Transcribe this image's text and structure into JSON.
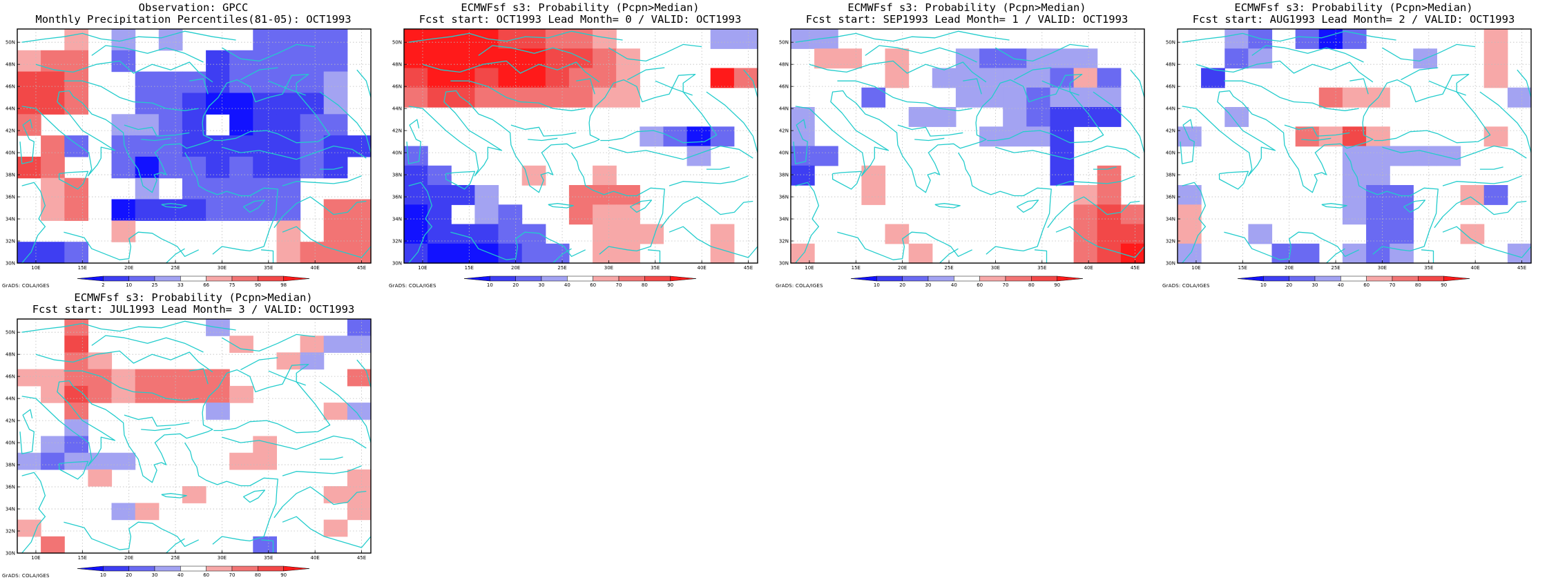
{
  "colors": {
    "coast": "#22cccc",
    "grid": "#bdbdbd",
    "scale": {
      "b5": "#1212ff",
      "b4": "#3e3ef2",
      "b3": "#6a6af2",
      "b2": "#a3a3f2",
      "w": "#ffffff",
      "r2": "#f7a8a8",
      "r3": "#f27474",
      "r4": "#f24848",
      "r5": "#ff1a1a"
    }
  },
  "axes": {
    "lat_labels": [
      "30N",
      "32N",
      "34N",
      "36N",
      "38N",
      "40N",
      "42N",
      "44N",
      "46N",
      "48N",
      "50N"
    ],
    "lon_labels": [
      "10E",
      "15E",
      "20E",
      "25E",
      "30E",
      "35E",
      "40E",
      "45E"
    ]
  },
  "panels": [
    {
      "id": "obs",
      "title_line1": "Observation: GPCC",
      "title_line2": "Monthly Precipitation Percentiles(81-05): OCT1993",
      "colorbar_labels": [
        "2",
        "10",
        "25",
        "33",
        "66",
        "75",
        "90",
        "98"
      ],
      "credit": "GrADS: COLA/IGES",
      "grid": [
        "w w r2 w b2 w b2 w w w b3 b3 b3 b3 w",
        "r2 r3 r3 w b3 w w w b4 b3 b3 b3 b3 b3 w",
        "r4 r4 r3 w w b3 b3 b3 b4 b3 b3 b3 b3 b2 w",
        "r4 r4 r3 w w b3 b3 b4 b5 b5 b4 b4 b4 b2 w",
        "r3 w w w b2 b2 b3 b4 w b5 b4 b4 b3 b3 w",
        "w r3 b3 w b3 b3 b3 b4 b4 b4 b4 b4 b3 b4 b4",
        "r4 r3 w w b3 b5 b3 b3 b4 b3 b4 b4 b3 b4 w",
        "w r2 r3 w w b2 w b3 b3 b3 b3 b3 w w w",
        "w r2 r3 w b5 b4 b4 b4 b3 b3 b3 b3 w r3 r3",
        "w w w w r2 w w w w w w r2 w r3 r3",
        "b4 b4 b3 w w w w w w w w r2 r3 r3 r3"
      ]
    },
    {
      "id": "lead0",
      "title_line1": "ECMWFsf s3: Probability (Pcpn>Median)",
      "title_line2": "Fcst start: OCT1993  Lead Month= 0 / VALID: OCT1993",
      "colorbar_labels": [
        "10",
        "20",
        "30",
        "40",
        "60",
        "70",
        "80",
        "90"
      ],
      "credit": "GrADS: COLA/IGES",
      "grid": [
        "r5 r5 r5 r5 r4 r4 r3 r3 r2 w w w w b2 b2",
        "r5 r5 r5 r5 r5 r5 r4 r4 r3 r2 w w w w w",
        "r4 r5 r5 r4 r5 r5 r4 r3 r3 r2 w w w r5 r3",
        "r3 r4 r4 r3 r3 r3 r3 r3 r2 r2 w w w w w",
        "w w w w w w w w w w w w w w w",
        "w w w w w w w w w w b2 b3 b5 b3 w",
        "b3 w w w w w w w w w w w b2 w w",
        "b4 b3 w w w r2 w w r2 w w w w w w",
        "b4 b4 b4 b2 w w w r3 r3 r3 w w w w w",
        "b5 b4 w b2 b3 w w r3 r2 r2 w w w w w",
        "b5 b4 b4 b4 b3 b3 w w r2 r2 r2 w w r2 w",
        "b4 b5 b5 b5 b4 b3 b3 w r2 r2 w w w r2 w"
      ]
    },
    {
      "id": "lead1",
      "title_line1": "ECMWFsf s3: Probability (Pcpn>Median)",
      "title_line2": "Fcst start: SEP1993  Lead Month= 1 / VALID: OCT1993",
      "colorbar_labels": [
        "10",
        "20",
        "30",
        "40",
        "60",
        "70",
        "80",
        "90"
      ],
      "credit": "GrADS: COLA/IGES",
      "grid": [
        "b2 b2 w w w w w w w w w w w w w",
        "w r2 r2 w r2 w w b2 b3 b3 b2 b2 b2 w w",
        "w w w w r2 w b2 b2 b2 b2 b2 b3 r2 b3 w",
        "w w w b3 w w w b2 b2 b2 b3 b2 b2 b2 w",
        "b2 w w w w b2 b2 w w b2 b3 b4 b4 b4 w",
        "b2 w w w w w w w b2 b2 b2 b4 w w w",
        "b3 b3 w w w w w w w w w b4 w w w",
        "b4 w w r2 w w w w w w w b4 w r3 w",
        "w w w r2 w w w w w w w w r2 r3 w",
        "w w w w w w w w w w w w r3 r4 r3",
        "w w w w r2 w w w w w w w r3 r4 r4",
        "r2 w w w w r2 w w w w w w r3 r4 r5"
      ]
    },
    {
      "id": "lead2",
      "title_line1": "ECMWFsf s3: Probability (Pcpn>Median)",
      "title_line2": "Fcst start: AUG1993  Lead Month= 2 / VALID: OCT1993",
      "colorbar_labels": [
        "10",
        "20",
        "30",
        "40",
        "60",
        "70",
        "80",
        "90"
      ],
      "credit": "GrADS: COLA/IGES",
      "grid": [
        "w w b2 b3 w b3 b5 b3 w w w w w r2 w",
        "w w b3 b2 w w w w w w b2 w w r2 w",
        "w b4 w w w w w w w w w w w r2 w",
        "w w w w w w r3 r2 r2 w w w w w b2",
        "w w b2 w w w w w w w w w w w w",
        "b2 w w w w r3 r2 r4 r2 w w w w r2 w",
        "w w w w w w w b2 b2 b2 b2 b2 w w w",
        "w w w w w w w b2 b2 w w w w w w",
        "b2 w w w w w w b2 b3 b3 w w r2 b3 w",
        "r2 w w w w w w b2 b3 b3 w w w w w",
        "r2 w w b2 w w w w b3 b3 w w r2 w w",
        "b2 w w w b3 b3 w b2 b3 b2 w w w w b2"
      ]
    },
    {
      "id": "lead3",
      "title_line1": "ECMWFsf s3: Probability (Pcpn>Median)",
      "title_line2": "Fcst start: JUL1993  Lead Month= 3 / VALID: OCT1993",
      "colorbar_labels": [
        "10",
        "20",
        "30",
        "40",
        "60",
        "70",
        "80",
        "90"
      ],
      "credit": "GrADS: COLA/IGES",
      "grid": [
        "w w r3 w w w w w b2 w w w w w b3",
        "w w r4 w w w w w w r2 w w r2 b2 b2",
        "w w r3 r2 w w w w w w w r2 b2 w w",
        "r2 r2 r3 r3 r2 r3 r3 r3 r3 w w w w w r3",
        "w r2 r4 r3 r2 r3 r3 r3 r3 r2 w w w w w",
        "w w r3 w w w w w b2 w w w w r2 b2",
        "w w b2 w w w w w w w w w w w w",
        "w b2 b3 w w w w w w w r2 w w w w",
        "b2 b3 b2 b2 b2 w w w w r2 r2 w w w w",
        "w w w r2 w w w w w w w w w w r2",
        "w w w w w w w r2 w w w w w r2 r2",
        "w w w w b2 r2 w w w w w w w w r2",
        "r2 w w w w w w w w w w w w r2 w",
        "w r3 w w w w w w w w b3 w w w w"
      ]
    }
  ]
}
